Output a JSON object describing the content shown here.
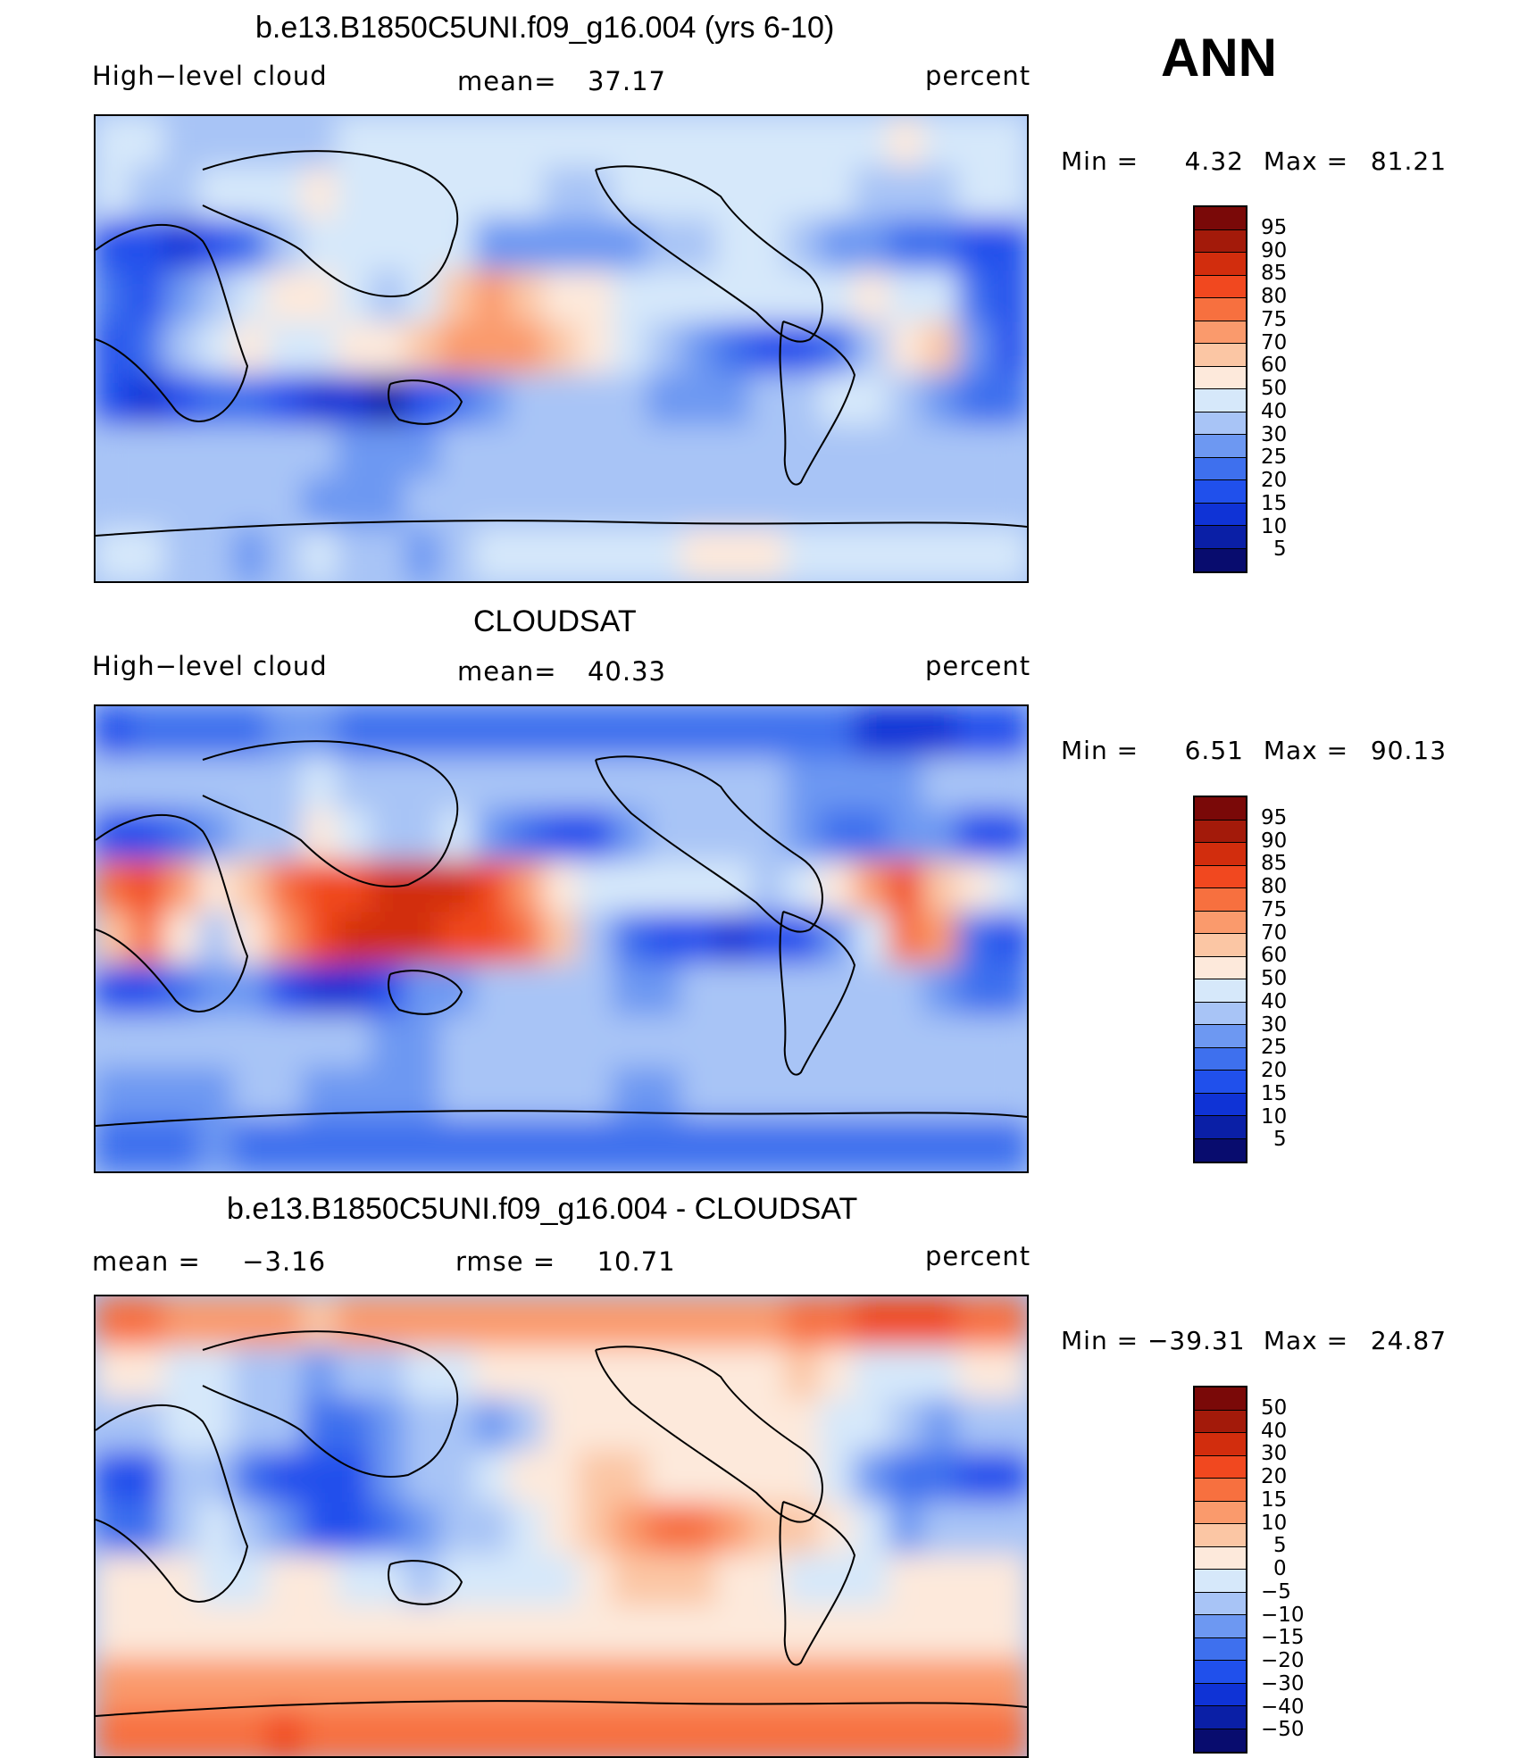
{
  "corner_label": "ANN",
  "unit_label": "percent",
  "colors": {
    "abs_scale": [
      "#080c6e",
      "#0a1fa6",
      "#0f33d6",
      "#2050ec",
      "#3e70ee",
      "#6d98f2",
      "#a8c4f6",
      "#d6e8fa",
      "#fde9db",
      "#fbc6a4",
      "#fa9a6c",
      "#f7703f",
      "#f1481f",
      "#d22d0d",
      "#a31a0a",
      "#7a0908"
    ],
    "diff_scale": [
      "#080c6e",
      "#0a1fa6",
      "#0f33d6",
      "#2050ec",
      "#3e70ee",
      "#6d98f2",
      "#a8c4f6",
      "#d6e8fa",
      "#fde9db",
      "#fbc6a4",
      "#fa9a6c",
      "#f7703f",
      "#f1481f",
      "#d22d0d",
      "#a31a0a",
      "#7a0908"
    ]
  },
  "chart_data": [
    {
      "type": "heatmap",
      "title": "b.e13.B1850C5UNI.f09_g16.004 (yrs 6-10)",
      "variable": "High−level cloud",
      "stat_label": "mean=",
      "stat_value": "37.17",
      "unit": "percent",
      "min_label": "Min  =",
      "min_value": "4.32",
      "max_label": "Max  =",
      "max_value": "81.21",
      "levels": [
        "95",
        "90",
        "85",
        "80",
        "75",
        "70",
        "60",
        "50",
        "40",
        "30",
        "25",
        "20",
        "15",
        "10",
        "5"
      ],
      "field": [
        [
          7,
          7,
          6,
          6,
          6,
          6,
          6,
          7,
          7,
          7,
          7,
          7,
          7,
          7,
          7,
          7,
          7,
          7,
          7,
          7,
          7,
          7,
          7,
          8,
          7,
          7,
          7
        ],
        [
          7,
          6,
          6,
          7,
          7,
          7,
          8,
          7,
          7,
          7,
          7,
          7,
          7,
          6,
          6,
          7,
          7,
          7,
          7,
          7,
          7,
          7,
          6,
          6,
          6,
          7,
          7
        ],
        [
          3,
          3,
          2,
          3,
          4,
          6,
          7,
          7,
          7,
          7,
          7,
          5,
          5,
          5,
          5,
          5,
          6,
          6,
          7,
          7,
          6,
          5,
          5,
          4,
          4,
          3,
          3
        ],
        [
          4,
          3,
          5,
          6,
          7,
          8,
          8,
          7,
          6,
          7,
          9,
          10,
          9,
          8,
          8,
          7,
          7,
          7,
          7,
          7,
          7,
          7,
          8,
          7,
          7,
          4,
          3
        ],
        [
          3,
          4,
          6,
          7,
          8,
          7,
          7,
          8,
          8,
          9,
          10,
          10,
          10,
          9,
          8,
          7,
          6,
          5,
          4,
          3,
          3,
          4,
          6,
          8,
          9,
          5,
          3
        ],
        [
          3,
          2,
          3,
          4,
          4,
          3,
          2,
          2,
          1,
          3,
          4,
          5,
          6,
          6,
          6,
          6,
          5,
          5,
          5,
          6,
          6,
          7,
          7,
          6,
          5,
          4,
          4
        ],
        [
          6,
          6,
          6,
          6,
          6,
          6,
          6,
          5,
          5,
          5,
          6,
          6,
          6,
          6,
          6,
          6,
          6,
          6,
          6,
          6,
          6,
          6,
          6,
          6,
          6,
          6,
          6
        ],
        [
          6,
          6,
          6,
          6,
          6,
          6,
          5,
          5,
          5,
          6,
          6,
          6,
          6,
          6,
          6,
          6,
          6,
          6,
          6,
          6,
          6,
          6,
          6,
          6,
          6,
          6,
          6
        ],
        [
          7,
          7,
          6,
          6,
          5,
          6,
          7,
          6,
          6,
          5,
          6,
          7,
          7,
          7,
          7,
          7,
          7,
          8,
          8,
          8,
          7,
          7,
          7,
          7,
          7,
          7,
          7
        ]
      ]
    },
    {
      "type": "heatmap",
      "title": "CLOUDSAT",
      "variable": "High−level cloud",
      "stat_label": "mean=",
      "stat_value": "40.33",
      "unit": "percent",
      "min_label": "Min  =",
      "min_value": "6.51",
      "max_label": "Max  =",
      "max_value": "90.13",
      "levels": [
        "95",
        "90",
        "85",
        "80",
        "75",
        "70",
        "60",
        "50",
        "40",
        "30",
        "25",
        "20",
        "15",
        "10",
        "5"
      ],
      "field": [
        [
          3,
          4,
          4,
          4,
          4,
          5,
          5,
          4,
          4,
          4,
          4,
          4,
          4,
          4,
          4,
          4,
          4,
          4,
          4,
          4,
          4,
          4,
          2,
          2,
          2,
          3,
          3
        ],
        [
          6,
          6,
          6,
          6,
          6,
          6,
          7,
          6,
          6,
          6,
          6,
          6,
          6,
          6,
          6,
          6,
          6,
          6,
          6,
          6,
          5,
          5,
          5,
          5,
          6,
          6,
          6
        ],
        [
          3,
          3,
          4,
          5,
          6,
          6,
          8,
          7,
          6,
          6,
          7,
          5,
          4,
          3,
          3,
          5,
          6,
          6,
          6,
          6,
          5,
          4,
          4,
          5,
          5,
          3,
          3
        ],
        [
          11,
          12,
          10,
          8,
          9,
          11,
          12,
          12,
          13,
          13,
          13,
          12,
          10,
          8,
          7,
          7,
          7,
          7,
          7,
          6,
          7,
          8,
          10,
          12,
          9,
          8,
          7
        ],
        [
          9,
          11,
          8,
          6,
          8,
          10,
          12,
          13,
          13,
          13,
          12,
          12,
          11,
          9,
          6,
          4,
          3,
          3,
          2,
          3,
          3,
          5,
          7,
          11,
          10,
          4,
          3
        ],
        [
          3,
          3,
          4,
          5,
          5,
          3,
          2,
          2,
          3,
          5,
          5,
          6,
          6,
          6,
          6,
          5,
          5,
          6,
          6,
          6,
          6,
          6,
          6,
          6,
          5,
          4,
          4
        ],
        [
          6,
          6,
          6,
          6,
          6,
          6,
          6,
          6,
          5,
          5,
          6,
          6,
          6,
          6,
          6,
          6,
          6,
          6,
          6,
          6,
          6,
          6,
          6,
          6,
          6,
          6,
          6
        ],
        [
          5,
          5,
          5,
          5,
          6,
          6,
          5,
          5,
          5,
          5,
          6,
          6,
          6,
          6,
          6,
          5,
          5,
          6,
          6,
          6,
          6,
          6,
          6,
          6,
          6,
          6,
          6
        ],
        [
          4,
          4,
          4,
          5,
          4,
          4,
          4,
          4,
          4,
          4,
          4,
          4,
          4,
          4,
          4,
          4,
          4,
          4,
          4,
          4,
          4,
          4,
          4,
          4,
          4,
          4,
          4
        ]
      ]
    },
    {
      "type": "heatmap",
      "title": "b.e13.B1850C5UNI.f09_g16.004 - CLOUDSAT",
      "stat_label": "mean =",
      "stat_value": "−3.16",
      "stat2_label": "rmse =",
      "stat2_value": "10.71",
      "unit": "percent",
      "min_label": "Min  =",
      "min_value": "−39.31",
      "max_label": "Max  =",
      "max_value": "24.87",
      "levels": [
        "50",
        "40",
        "30",
        "20",
        "15",
        "10",
        "5",
        "0",
        "−5",
        "−10",
        "−15",
        "−20",
        "−30",
        "−40",
        "−50"
      ],
      "field": [
        [
          11,
          11,
          10,
          10,
          10,
          10,
          9,
          10,
          10,
          10,
          10,
          10,
          10,
          10,
          10,
          10,
          10,
          10,
          10,
          10,
          11,
          11,
          12,
          12,
          12,
          11,
          11
        ],
        [
          8,
          8,
          7,
          7,
          6,
          6,
          5,
          6,
          6,
          7,
          7,
          8,
          8,
          8,
          8,
          8,
          8,
          8,
          8,
          8,
          9,
          8,
          7,
          7,
          7,
          8,
          8
        ],
        [
          6,
          6,
          7,
          7,
          6,
          6,
          4,
          4,
          5,
          6,
          6,
          5,
          6,
          8,
          8,
          8,
          8,
          8,
          8,
          8,
          8,
          7,
          7,
          6,
          5,
          6,
          6
        ],
        [
          3,
          3,
          6,
          6,
          4,
          3,
          3,
          3,
          5,
          6,
          6,
          7,
          8,
          8,
          9,
          9,
          8,
          8,
          8,
          8,
          8,
          7,
          5,
          4,
          4,
          3,
          3
        ],
        [
          4,
          4,
          6,
          7,
          6,
          5,
          3,
          3,
          4,
          5,
          6,
          6,
          7,
          8,
          9,
          10,
          11,
          11,
          10,
          9,
          9,
          8,
          7,
          5,
          6,
          6,
          6
        ],
        [
          8,
          8,
          8,
          7,
          7,
          8,
          8,
          7,
          7,
          6,
          7,
          7,
          7,
          7,
          8,
          9,
          9,
          9,
          8,
          8,
          7,
          7,
          7,
          8,
          8,
          8,
          8
        ],
        [
          8,
          8,
          8,
          8,
          8,
          8,
          8,
          8,
          8,
          8,
          8,
          8,
          8,
          8,
          8,
          8,
          8,
          8,
          8,
          8,
          8,
          8,
          8,
          8,
          8,
          8,
          8
        ],
        [
          10,
          10,
          10,
          10,
          10,
          10,
          10,
          10,
          10,
          10,
          10,
          10,
          10,
          10,
          10,
          10,
          10,
          10,
          10,
          10,
          10,
          10,
          10,
          10,
          10,
          10,
          10
        ],
        [
          11,
          11,
          11,
          11,
          11,
          12,
          11,
          11,
          11,
          11,
          11,
          11,
          11,
          11,
          11,
          11,
          11,
          11,
          11,
          11,
          11,
          11,
          11,
          11,
          11,
          11,
          11
        ]
      ]
    }
  ]
}
